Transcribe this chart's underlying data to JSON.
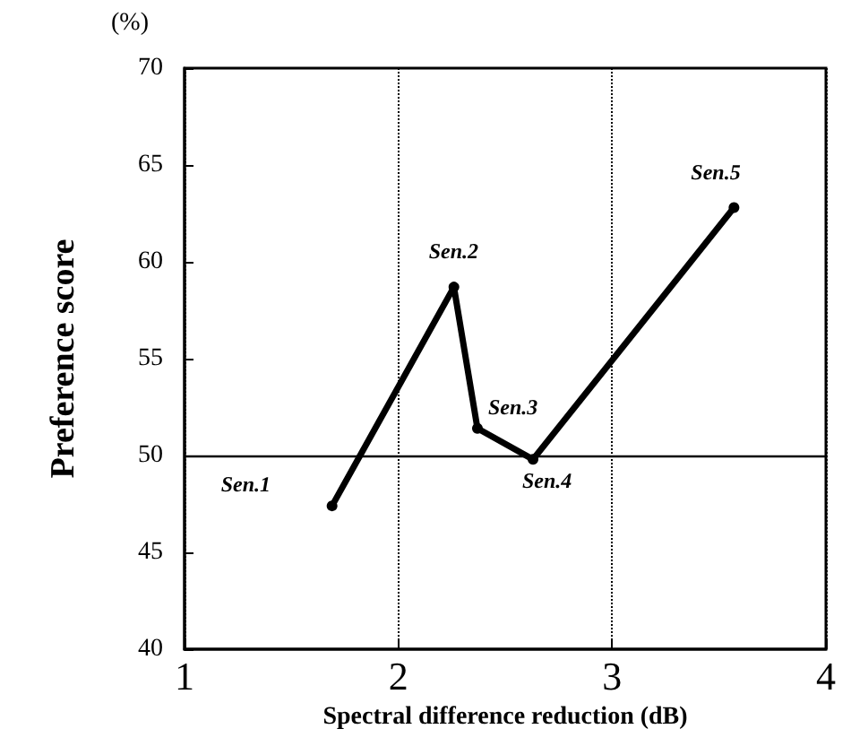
{
  "chart_data": {
    "type": "line",
    "xlabel": "Spectral difference reduction (dB)",
    "ylabel": "Preference score",
    "x": [
      1.69,
      2.26,
      2.37,
      2.63,
      3.57
    ],
    "series": [
      {
        "color": "#000000",
        "values": [
          47.4,
          58.7,
          51.4,
          49.8,
          62.8
        ]
      }
    ],
    "xlim": [
      1,
      4
    ],
    "xticks": [
      1,
      2,
      3,
      4
    ],
    "ylim": [
      40,
      70
    ],
    "yticks": [
      40,
      45,
      50,
      55,
      60,
      65,
      70
    ],
    "grid": "x",
    "marker": "circle",
    "line_style": "solid",
    "ref_lines": [
      {
        "axis": "y",
        "value": 50,
        "color": "#000000",
        "line_style": "solid"
      }
    ],
    "annotations": [
      "(%)",
      {
        "text": "Sen.1",
        "x": 1.69,
        "y": 47.4
      },
      {
        "text": "Sen.2",
        "x": 2.26,
        "y": 58.7
      },
      {
        "text": "Sen.3",
        "x": 2.37,
        "y": 51.4
      },
      {
        "text": "Sen.4",
        "x": 2.63,
        "y": 49.8
      },
      {
        "text": "Sen.5",
        "x": 3.57,
        "y": 62.8
      }
    ]
  }
}
